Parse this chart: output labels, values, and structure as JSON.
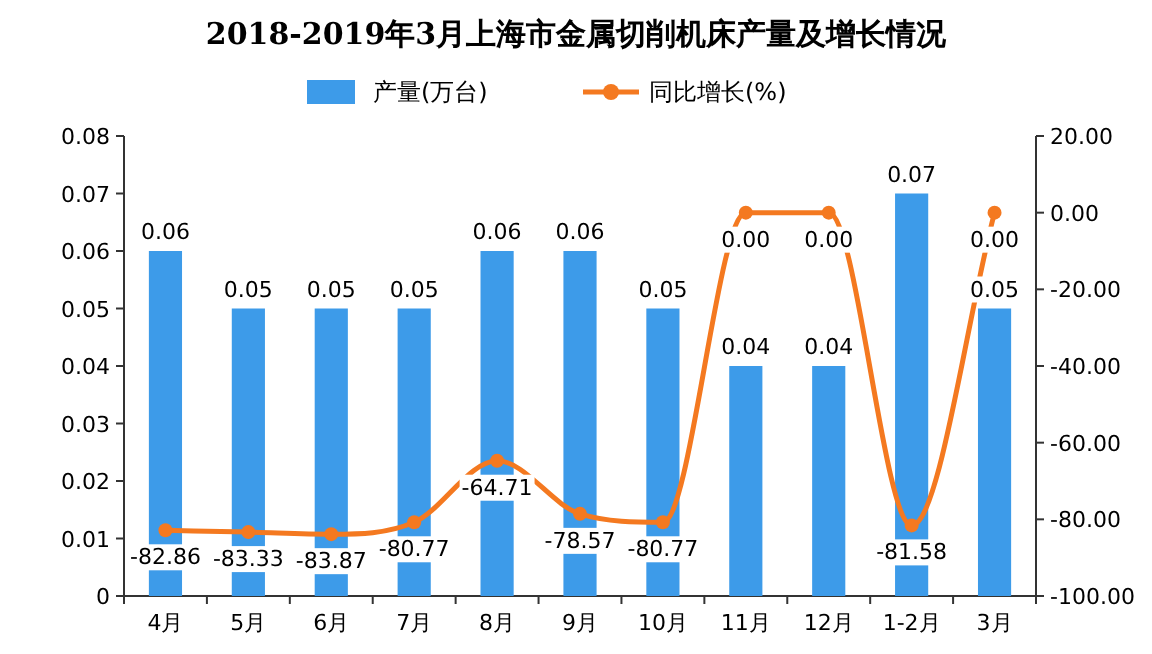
{
  "chart_data": {
    "type": "bar",
    "title": "2018-2019年3月上海市金属切削机床产量及增长情况",
    "categories": [
      "4月",
      "5月",
      "6月",
      "7月",
      "8月",
      "9月",
      "10月",
      "11月",
      "12月",
      "1-2月",
      "3月"
    ],
    "series": [
      {
        "name": "产量(万台)",
        "color": "#3d9be9",
        "values": [
          0.06,
          0.05,
          0.05,
          0.05,
          0.06,
          0.06,
          0.05,
          0.04,
          0.04,
          0.07,
          0.05
        ],
        "value_labels": [
          "0.06",
          "0.05",
          "0.05",
          "0.05",
          "0.06",
          "0.06",
          "0.05",
          "0.04",
          "0.04",
          "0.07",
          "0.05"
        ]
      },
      {
        "name": "同比增长(%)",
        "type": "line",
        "axis": "y2",
        "color": "#f47920",
        "marker": "circle",
        "values": [
          -82.86,
          -83.33,
          -83.87,
          -80.77,
          -64.71,
          -78.57,
          -80.77,
          0,
          0,
          -81.58,
          0
        ],
        "value_labels": [
          "-82.86",
          "-83.33",
          "-83.87",
          "-80.77",
          "-64.71",
          "-78.57",
          "-80.77",
          "0.00",
          "0.00",
          "-81.58",
          "0.00"
        ]
      }
    ],
    "ylim": [
      0,
      0.08
    ],
    "yticks": [
      0,
      0.01,
      0.02,
      0.03,
      0.04,
      0.05,
      0.06,
      0.07,
      0.08
    ],
    "y2lim": [
      -100,
      20
    ],
    "y2ticks": [
      {
        "value": -100,
        "label": "-100.00"
      },
      {
        "value": -80,
        "label": "-80.00"
      },
      {
        "value": -60,
        "label": "-60.00"
      },
      {
        "value": -40,
        "label": "-40.00"
      },
      {
        "value": -20,
        "label": "-20.00"
      },
      {
        "value": 0,
        "label": "0.00"
      },
      {
        "value": 20,
        "label": "20.00"
      }
    ],
    "legend": "top",
    "grid": false
  }
}
